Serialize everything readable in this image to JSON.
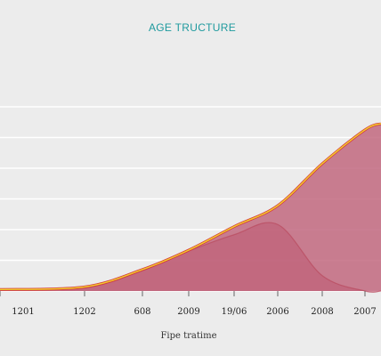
{
  "chart_data": {
    "type": "area",
    "title": "AGE TRUCTURE",
    "xlabel": "Fipe tratime",
    "ylabel": "",
    "categories": [
      "1201",
      "1202",
      "608",
      "2009",
      "19/06",
      "2006",
      "2008",
      "2007"
    ],
    "grid": "horizontal",
    "legend": "none",
    "series": [
      {
        "values": [
          0.3,
          0.8,
          4.2,
          8.0,
          12.6,
          16.7,
          24.9,
          31.5
        ]
      },
      {
        "values": [
          0.3,
          0.6,
          4.0,
          7.8,
          11.0,
          13.0,
          3.0,
          0.0
        ]
      }
    ],
    "ylim": [
      0,
      36
    ]
  },
  "colors": {
    "background": "#ececec",
    "title": "#1f9a9e",
    "area_fill": "#c0637a",
    "area_fill_inner": "#bd5a73",
    "outline_red": "#d4363a",
    "outline_yellow": "#f1cc2e",
    "gridline": "#ffffff",
    "inner_line": "#b94a5e"
  }
}
